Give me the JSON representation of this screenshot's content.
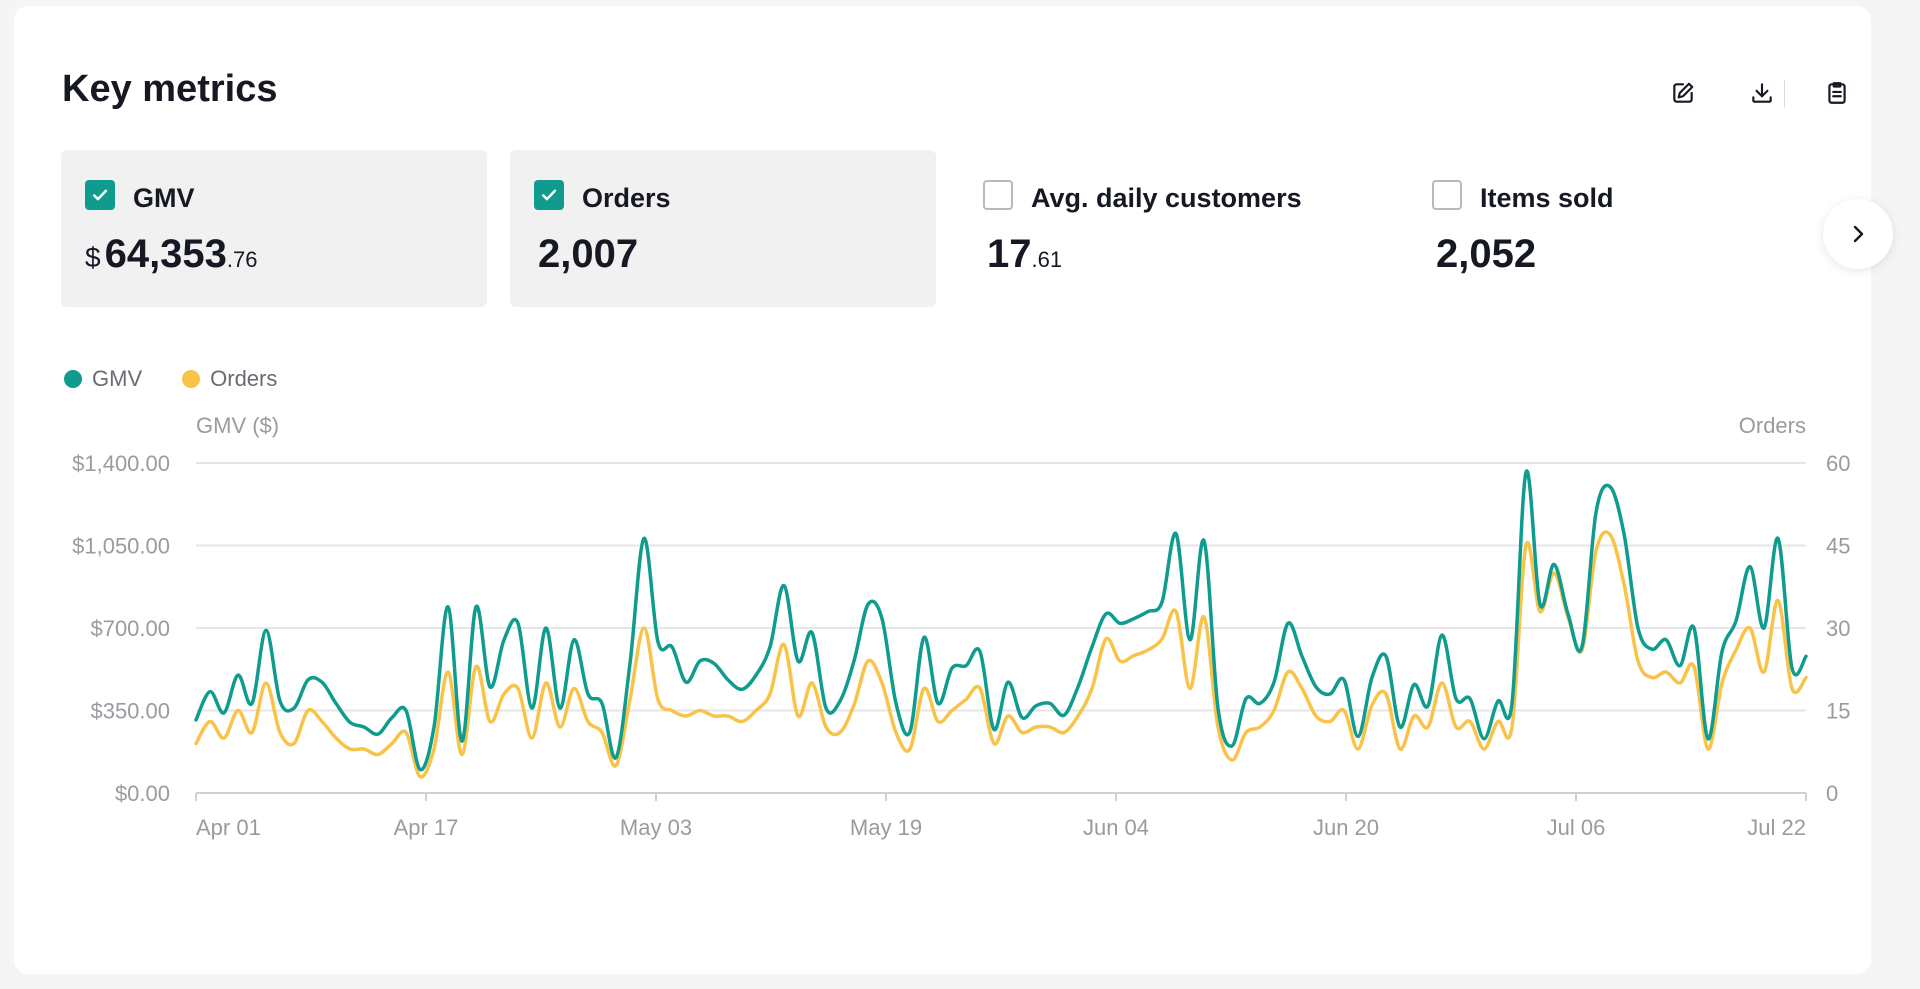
{
  "title": "Key metrics",
  "toolbar": {
    "edit_icon": "edit-icon",
    "download_icon": "download-icon",
    "clipboard_icon": "clipboard-icon"
  },
  "metrics": [
    {
      "label": "GMV",
      "currency": "$",
      "integer": "64,353",
      "decimal": ".76",
      "selected": true
    },
    {
      "label": "Orders",
      "currency": "",
      "integer": "2,007",
      "decimal": "",
      "selected": true
    },
    {
      "label": "Avg. daily customers",
      "currency": "",
      "integer": "17",
      "decimal": ".61",
      "selected": false
    },
    {
      "label": "Items sold",
      "currency": "",
      "integer": "2,052",
      "decimal": "",
      "selected": false
    }
  ],
  "colors": {
    "gmv": "#0f9c8f",
    "orders": "#f9c349",
    "grid": "#e6e6e9",
    "axis_text": "#9a9aa1"
  },
  "legend": [
    "GMV",
    "Orders"
  ],
  "chart_data": {
    "type": "line",
    "ylabel": "GMV ($)",
    "y2label": "Orders",
    "ylim": [
      0,
      1400
    ],
    "y2lim": [
      0,
      60
    ],
    "yticks": [
      "$0.00",
      "$350.00",
      "$700.00",
      "$1,050.00",
      "$1,400.00"
    ],
    "y2ticks": [
      "0",
      "15",
      "30",
      "45",
      "60"
    ],
    "xticks": [
      "Apr 01",
      "Apr 17",
      "May 03",
      "May 19",
      "Jun 04",
      "Jun 20",
      "Jul 06",
      "Jul 22"
    ],
    "grid": true,
    "series": [
      {
        "name": "GMV",
        "axis": "left",
        "values": [
          310,
          430,
          340,
          500,
          380,
          690,
          390,
          360,
          480,
          470,
          380,
          300,
          280,
          250,
          320,
          350,
          100,
          280,
          790,
          220,
          790,
          450,
          650,
          720,
          360,
          700,
          360,
          650,
          420,
          380,
          150,
          550,
          1080,
          640,
          620,
          470,
          560,
          550,
          480,
          440,
          500,
          620,
          880,
          560,
          680,
          360,
          390,
          560,
          800,
          740,
          380,
          260,
          660,
          380,
          530,
          540,
          600,
          270,
          470,
          320,
          370,
          380,
          330,
          450,
          620,
          760,
          720,
          740,
          770,
          810,
          1100,
          650,
          1070,
          360,
          200,
          400,
          380,
          470,
          720,
          580,
          450,
          420,
          480,
          240,
          490,
          580,
          280,
          460,
          370,
          670,
          400,
          400,
          230,
          390,
          380,
          1360,
          800,
          970,
          760,
          620,
          1190,
          1300,
          1100,
          700,
          610,
          650,
          540,
          700,
          230,
          600,
          730,
          960,
          700,
          1080,
          530,
          580
        ]
      },
      {
        "name": "Orders",
        "axis": "right",
        "values": [
          9,
          13,
          10,
          15,
          11,
          20,
          11,
          9,
          15,
          13,
          10,
          8,
          8,
          7,
          9,
          11,
          3,
          8,
          22,
          7,
          23,
          13,
          18,
          19,
          10,
          20,
          12,
          19,
          13,
          11,
          5,
          17,
          30,
          17,
          15,
          14,
          15,
          14,
          14,
          13,
          15,
          18,
          27,
          14,
          20,
          12,
          11,
          16,
          24,
          20,
          11,
          8,
          19,
          13,
          15,
          17,
          19,
          9,
          14,
          11,
          12,
          12,
          11,
          14,
          19,
          28,
          24,
          25,
          26,
          28,
          33,
          19,
          32,
          12,
          6,
          11,
          12,
          15,
          22,
          19,
          14,
          13,
          15,
          8,
          16,
          18,
          8,
          14,
          12,
          20,
          12,
          13,
          8,
          13,
          12,
          45,
          33,
          40,
          32,
          26,
          44,
          47,
          38,
          24,
          21,
          22,
          20,
          23,
          8,
          20,
          26,
          30,
          22,
          35,
          19,
          21
        ]
      }
    ]
  }
}
